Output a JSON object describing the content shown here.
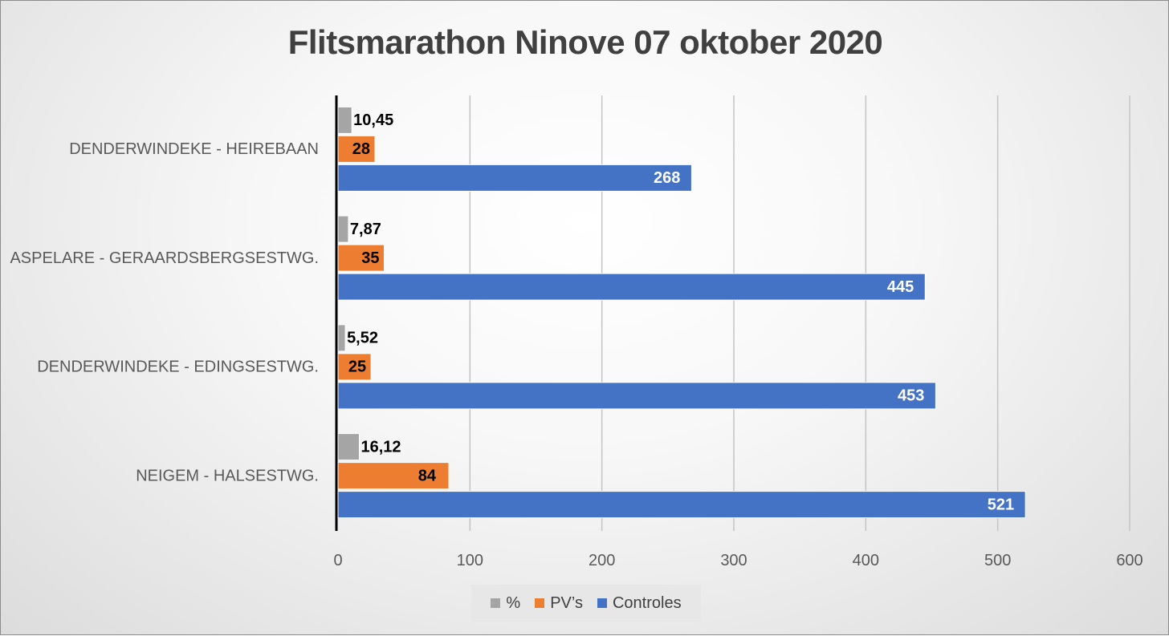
{
  "chart_data": {
    "type": "bar",
    "orientation": "horizontal",
    "title": "Flitsmarathon Ninove 07 oktober 2020",
    "categories": [
      "DENDERWINDEKE - HEIREBAAN",
      "ASPELARE - GERAARDSBERGSESTWG.",
      "DENDERWINDEKE - EDINGSESTWG.",
      "NEIGEM - HALSESTWG."
    ],
    "series": [
      {
        "name": "%",
        "color": "#a5a5a5",
        "values": [
          10.45,
          7.87,
          5.52,
          16.12
        ],
        "labels": [
          "10,45",
          "7,87",
          "5,52",
          "16,12"
        ]
      },
      {
        "name": "PV’s",
        "color": "#ed7d31",
        "values": [
          28,
          35,
          25,
          84
        ],
        "labels": [
          "28",
          "35",
          "25",
          "84"
        ]
      },
      {
        "name": "Controles",
        "color": "#4472c4",
        "values": [
          268,
          445,
          453,
          521
        ],
        "labels": [
          "268",
          "445",
          "453",
          "521"
        ]
      }
    ],
    "xlim": [
      0,
      600
    ],
    "xticks": [
      "0",
      "100",
      "200",
      "300",
      "400",
      "500",
      "600"
    ],
    "grid": true,
    "legend_position": "bottom"
  }
}
